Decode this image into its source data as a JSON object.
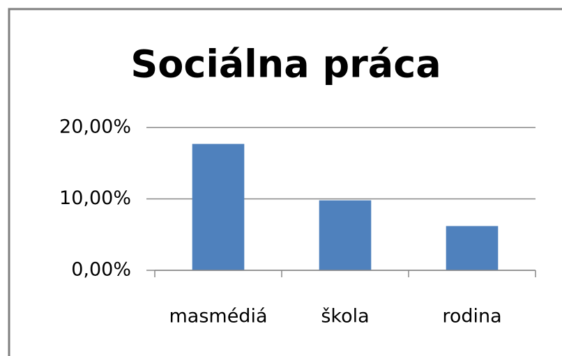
{
  "chart_data": {
    "type": "bar",
    "title": "Sociálna práca",
    "categories": [
      "masmédiá",
      "škola",
      "rodina"
    ],
    "values": [
      17.7,
      9.8,
      6.2
    ],
    "color": "#4f81bd",
    "ylim": [
      0,
      20
    ],
    "yticks": [
      {
        "value": 0,
        "label": "0,00%"
      },
      {
        "value": 10,
        "label": "10,00%"
      },
      {
        "value": 20,
        "label": "20,00%"
      }
    ],
    "grid": true
  }
}
